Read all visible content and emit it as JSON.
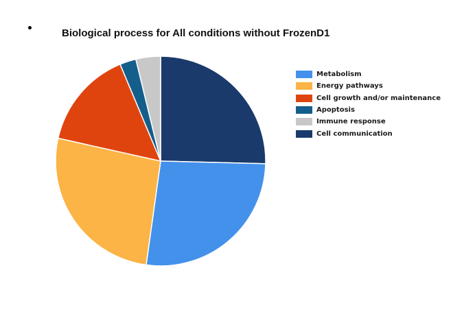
{
  "chart_data": {
    "type": "pie",
    "title": "Biological process for All conditions without FrozenD1",
    "start": "top, clockwise",
    "legend_position": "right",
    "slices": [
      {
        "name": "Cell communication",
        "value": 25.4,
        "color": "#1a3a6b"
      },
      {
        "name": "Metabolism",
        "value": 26.8,
        "color": "#4491eb"
      },
      {
        "name": "Energy pathways",
        "value": 26.3,
        "color": "#fbb445"
      },
      {
        "name": "Cell growth and/or maintenance",
        "value": 15.2,
        "color": "#e0440e"
      },
      {
        "name": "Apoptosis",
        "value": 2.5,
        "color": "#145e8c"
      },
      {
        "name": "Immune response",
        "value": 3.8,
        "color": "#c8c8c8"
      }
    ],
    "legend": [
      {
        "label": "Metabolism",
        "color": "#4491eb"
      },
      {
        "label": "Energy pathways",
        "color": "#fbb445"
      },
      {
        "label": "Cell growth and/or maintenance",
        "color": "#e0440e"
      },
      {
        "label": "Apoptosis",
        "color": "#145e8c"
      },
      {
        "label": "Immune response",
        "color": "#c8c8c8"
      },
      {
        "label": "Cell communication",
        "color": "#1a3a6b"
      }
    ]
  }
}
